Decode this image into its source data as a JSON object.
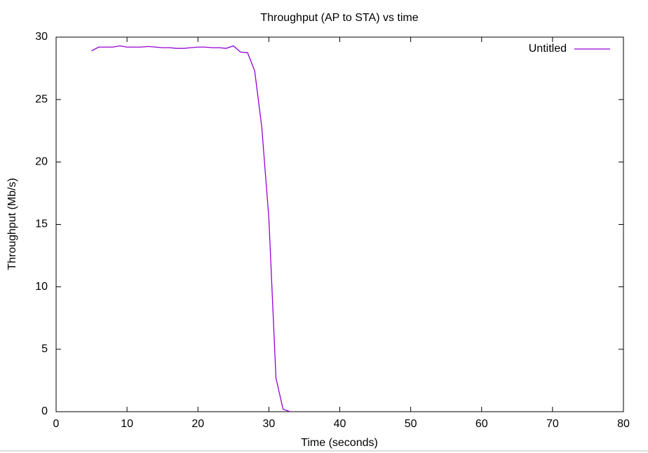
{
  "chart_data": {
    "type": "line",
    "title": "Throughput (AP to STA) vs time",
    "xlabel": "Time (seconds)",
    "ylabel": "Throughput (Mb/s)",
    "x": [
      5,
      6,
      7,
      8,
      9,
      10,
      11,
      12,
      13,
      14,
      15,
      16,
      17,
      18,
      19,
      20,
      21,
      22,
      23,
      24,
      25,
      26,
      27,
      28,
      29,
      30,
      31,
      32,
      33
    ],
    "series": [
      {
        "name": "Untitled",
        "color": "#9400d3",
        "values": [
          28.9,
          29.2,
          29.2,
          29.2,
          29.3,
          29.2,
          29.2,
          29.2,
          29.25,
          29.2,
          29.15,
          29.15,
          29.1,
          29.1,
          29.15,
          29.2,
          29.2,
          29.15,
          29.15,
          29.1,
          29.3,
          28.8,
          28.75,
          27.3,
          22.8,
          15.5,
          2.7,
          0.2,
          0
        ]
      }
    ],
    "xlim": [
      0,
      80
    ],
    "xticks": [
      0,
      10,
      20,
      30,
      40,
      50,
      60,
      70,
      80
    ],
    "ylim": [
      0,
      30
    ],
    "yticks": [
      0,
      5,
      10,
      15,
      20,
      25,
      30
    ],
    "legend": "top-right"
  }
}
